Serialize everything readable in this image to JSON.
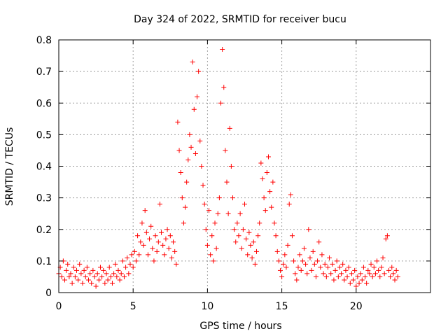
{
  "chart_data": {
    "type": "scatter",
    "title": "Day 324 of 2022, SRMTID for receiver bucu",
    "xlabel": "GPS time / hours",
    "ylabel": "SRMTID / TECUs",
    "xlim": [
      0,
      25
    ],
    "ylim": [
      0,
      0.8
    ],
    "xticks": [
      0,
      5,
      10,
      15,
      20
    ],
    "xtick_labels": [
      "0",
      "5",
      "10",
      "15",
      "20"
    ],
    "yticks": [
      0,
      0.1,
      0.2,
      0.3,
      0.4,
      0.5,
      0.6,
      0.7,
      0.8
    ],
    "ytick_labels": [
      "0",
      "0.1",
      "0.2",
      "0.3",
      "0.4",
      "0.5",
      "0.6",
      "0.7",
      "0.8"
    ],
    "grid": true,
    "marker": "+",
    "color": "#ff0000",
    "series": [
      {
        "name": "SRMTID",
        "points": [
          [
            0.0,
            0.06
          ],
          [
            0.1,
            0.08
          ],
          [
            0.2,
            0.05
          ],
          [
            0.3,
            0.1
          ],
          [
            0.4,
            0.04
          ],
          [
            0.5,
            0.07
          ],
          [
            0.6,
            0.09
          ],
          [
            0.7,
            0.05
          ],
          [
            0.8,
            0.06
          ],
          [
            0.9,
            0.03
          ],
          [
            1.0,
            0.08
          ],
          [
            1.1,
            0.05
          ],
          [
            1.2,
            0.07
          ],
          [
            1.3,
            0.04
          ],
          [
            1.4,
            0.09
          ],
          [
            1.5,
            0.06
          ],
          [
            1.6,
            0.03
          ],
          [
            1.7,
            0.07
          ],
          [
            1.8,
            0.05
          ],
          [
            1.9,
            0.08
          ],
          [
            2.0,
            0.04
          ],
          [
            2.1,
            0.06
          ],
          [
            2.2,
            0.03
          ],
          [
            2.3,
            0.07
          ],
          [
            2.4,
            0.05
          ],
          [
            2.5,
            0.02
          ],
          [
            2.6,
            0.06
          ],
          [
            2.7,
            0.04
          ],
          [
            2.8,
            0.08
          ],
          [
            2.9,
            0.05
          ],
          [
            3.0,
            0.07
          ],
          [
            3.1,
            0.03
          ],
          [
            3.2,
            0.06
          ],
          [
            3.3,
            0.04
          ],
          [
            3.4,
            0.08
          ],
          [
            3.5,
            0.05
          ],
          [
            3.6,
            0.03
          ],
          [
            3.7,
            0.06
          ],
          [
            3.8,
            0.09
          ],
          [
            3.9,
            0.05
          ],
          [
            4.0,
            0.07
          ],
          [
            4.1,
            0.04
          ],
          [
            4.2,
            0.06
          ],
          [
            4.3,
            0.1
          ],
          [
            4.4,
            0.05
          ],
          [
            4.5,
            0.08
          ],
          [
            4.6,
            0.11
          ],
          [
            4.7,
            0.06
          ],
          [
            4.8,
            0.09
          ],
          [
            4.9,
            0.12
          ],
          [
            5.0,
            0.08
          ],
          [
            5.1,
            0.13
          ],
          [
            5.2,
            0.1
          ],
          [
            5.3,
            0.18
          ],
          [
            5.4,
            0.12
          ],
          [
            5.5,
            0.16
          ],
          [
            5.6,
            0.22
          ],
          [
            5.7,
            0.15
          ],
          [
            5.8,
            0.26
          ],
          [
            5.9,
            0.19
          ],
          [
            6.0,
            0.12
          ],
          [
            6.1,
            0.17
          ],
          [
            6.2,
            0.21
          ],
          [
            6.3,
            0.14
          ],
          [
            6.4,
            0.1
          ],
          [
            6.5,
            0.18
          ],
          [
            6.6,
            0.13
          ],
          [
            6.7,
            0.16
          ],
          [
            6.8,
            0.28
          ],
          [
            6.9,
            0.19
          ],
          [
            7.0,
            0.15
          ],
          [
            7.1,
            0.12
          ],
          [
            7.2,
            0.17
          ],
          [
            7.3,
            0.2
          ],
          [
            7.4,
            0.14
          ],
          [
            7.5,
            0.18
          ],
          [
            7.6,
            0.11
          ],
          [
            7.7,
            0.16
          ],
          [
            7.8,
            0.13
          ],
          [
            7.9,
            0.09
          ],
          [
            8.0,
            0.54
          ],
          [
            8.1,
            0.45
          ],
          [
            8.2,
            0.38
          ],
          [
            8.3,
            0.3
          ],
          [
            8.4,
            0.22
          ],
          [
            8.5,
            0.27
          ],
          [
            8.6,
            0.35
          ],
          [
            8.7,
            0.42
          ],
          [
            8.8,
            0.5
          ],
          [
            8.9,
            0.46
          ],
          [
            9.0,
            0.73
          ],
          [
            9.1,
            0.58
          ],
          [
            9.2,
            0.44
          ],
          [
            9.3,
            0.62
          ],
          [
            9.4,
            0.7
          ],
          [
            9.5,
            0.48
          ],
          [
            9.6,
            0.4
          ],
          [
            9.7,
            0.34
          ],
          [
            9.8,
            0.28
          ],
          [
            9.9,
            0.2
          ],
          [
            10.0,
            0.15
          ],
          [
            10.1,
            0.26
          ],
          [
            10.2,
            0.12
          ],
          [
            10.3,
            0.18
          ],
          [
            10.4,
            0.1
          ],
          [
            10.5,
            0.22
          ],
          [
            10.6,
            0.14
          ],
          [
            10.7,
            0.25
          ],
          [
            10.8,
            0.3
          ],
          [
            10.9,
            0.6
          ],
          [
            11.0,
            0.77
          ],
          [
            11.1,
            0.65
          ],
          [
            11.2,
            0.45
          ],
          [
            11.3,
            0.35
          ],
          [
            11.4,
            0.25
          ],
          [
            11.5,
            0.52
          ],
          [
            11.6,
            0.4
          ],
          [
            11.7,
            0.3
          ],
          [
            11.8,
            0.2
          ],
          [
            11.9,
            0.16
          ],
          [
            12.0,
            0.22
          ],
          [
            12.1,
            0.18
          ],
          [
            12.2,
            0.25
          ],
          [
            12.3,
            0.14
          ],
          [
            12.4,
            0.2
          ],
          [
            12.5,
            0.28
          ],
          [
            12.6,
            0.17
          ],
          [
            12.7,
            0.12
          ],
          [
            12.8,
            0.19
          ],
          [
            12.9,
            0.15
          ],
          [
            13.0,
            0.11
          ],
          [
            13.1,
            0.16
          ],
          [
            13.2,
            0.09
          ],
          [
            13.3,
            0.13
          ],
          [
            13.4,
            0.18
          ],
          [
            13.5,
            0.22
          ],
          [
            13.6,
            0.41
          ],
          [
            13.7,
            0.36
          ],
          [
            13.8,
            0.3
          ],
          [
            13.9,
            0.26
          ],
          [
            14.0,
            0.38
          ],
          [
            14.1,
            0.43
          ],
          [
            14.2,
            0.32
          ],
          [
            14.3,
            0.27
          ],
          [
            14.4,
            0.35
          ],
          [
            14.5,
            0.22
          ],
          [
            14.6,
            0.18
          ],
          [
            14.7,
            0.13
          ],
          [
            14.8,
            0.1
          ],
          [
            14.9,
            0.07
          ],
          [
            15.0,
            0.05
          ],
          [
            15.1,
            0.09
          ],
          [
            15.2,
            0.12
          ],
          [
            15.3,
            0.08
          ],
          [
            15.4,
            0.15
          ],
          [
            15.5,
            0.28
          ],
          [
            15.6,
            0.31
          ],
          [
            15.7,
            0.18
          ],
          [
            15.8,
            0.1
          ],
          [
            15.9,
            0.06
          ],
          [
            16.0,
            0.04
          ],
          [
            16.1,
            0.08
          ],
          [
            16.2,
            0.12
          ],
          [
            16.3,
            0.07
          ],
          [
            16.4,
            0.1
          ],
          [
            16.5,
            0.14
          ],
          [
            16.6,
            0.09
          ],
          [
            16.7,
            0.06
          ],
          [
            16.8,
            0.2
          ],
          [
            16.9,
            0.11
          ],
          [
            17.0,
            0.07
          ],
          [
            17.1,
            0.13
          ],
          [
            17.2,
            0.09
          ],
          [
            17.3,
            0.05
          ],
          [
            17.4,
            0.1
          ],
          [
            17.5,
            0.16
          ],
          [
            17.6,
            0.08
          ],
          [
            17.7,
            0.12
          ],
          [
            17.8,
            0.06
          ],
          [
            17.9,
            0.09
          ],
          [
            18.0,
            0.05
          ],
          [
            18.1,
            0.08
          ],
          [
            18.2,
            0.11
          ],
          [
            18.3,
            0.06
          ],
          [
            18.4,
            0.09
          ],
          [
            18.5,
            0.04
          ],
          [
            18.6,
            0.07
          ],
          [
            18.7,
            0.1
          ],
          [
            18.8,
            0.05
          ],
          [
            18.9,
            0.08
          ],
          [
            19.0,
            0.06
          ],
          [
            19.1,
            0.09
          ],
          [
            19.2,
            0.04
          ],
          [
            19.3,
            0.07
          ],
          [
            19.4,
            0.05
          ],
          [
            19.5,
            0.08
          ],
          [
            19.6,
            0.03
          ],
          [
            19.7,
            0.06
          ],
          [
            19.8,
            0.04
          ],
          [
            19.9,
            0.07
          ],
          [
            20.0,
            0.02
          ],
          [
            20.1,
            0.05
          ],
          [
            20.2,
            0.03
          ],
          [
            20.3,
            0.06
          ],
          [
            20.4,
            0.04
          ],
          [
            20.5,
            0.08
          ],
          [
            20.6,
            0.05
          ],
          [
            20.7,
            0.03
          ],
          [
            20.8,
            0.07
          ],
          [
            20.9,
            0.06
          ],
          [
            21.0,
            0.09
          ],
          [
            21.1,
            0.05
          ],
          [
            21.2,
            0.08
          ],
          [
            21.3,
            0.06
          ],
          [
            21.4,
            0.1
          ],
          [
            21.5,
            0.07
          ],
          [
            21.6,
            0.05
          ],
          [
            21.7,
            0.08
          ],
          [
            21.8,
            0.11
          ],
          [
            21.9,
            0.06
          ],
          [
            22.0,
            0.17
          ],
          [
            22.1,
            0.18
          ],
          [
            22.2,
            0.07
          ],
          [
            22.3,
            0.05
          ],
          [
            22.4,
            0.08
          ],
          [
            22.5,
            0.06
          ],
          [
            22.6,
            0.04
          ],
          [
            22.7,
            0.07
          ],
          [
            22.8,
            0.05
          ]
        ]
      }
    ]
  }
}
